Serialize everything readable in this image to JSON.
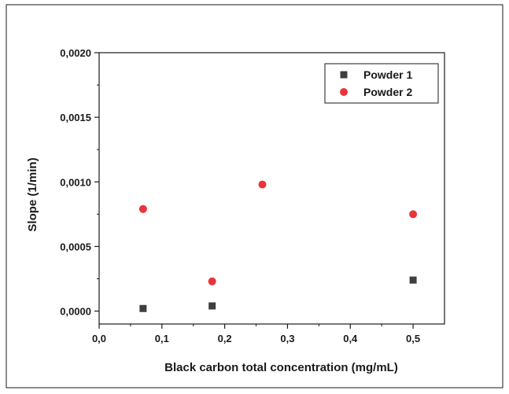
{
  "chart_data": {
    "type": "scatter",
    "title": "",
    "xlabel": "Black carbon total concentration (mg/mL)",
    "ylabel": "Slope (1/min)",
    "xlim": [
      0.0,
      0.55
    ],
    "ylim": [
      -0.0001,
      0.002
    ],
    "xticks": [
      0.0,
      0.1,
      0.2,
      0.3,
      0.4,
      0.5
    ],
    "xtick_labels": [
      "0,0",
      "0,1",
      "0,2",
      "0,3",
      "0,4",
      "0,5"
    ],
    "yticks": [
      0.0,
      0.0005,
      0.001,
      0.0015,
      0.002
    ],
    "ytick_labels": [
      "0,0000",
      "0,0005",
      "0,0010",
      "0,0015",
      "0,0020"
    ],
    "grid": false,
    "legend_position": "top-right",
    "series": [
      {
        "name": "Powder 1",
        "marker": "square",
        "color": "#3f3f3f",
        "points": [
          {
            "x": 0.07,
            "y": 2e-05
          },
          {
            "x": 0.18,
            "y": 4e-05
          },
          {
            "x": 0.5,
            "y": 0.00024
          }
        ]
      },
      {
        "name": "Powder 2",
        "marker": "circle",
        "color": "#e8343a",
        "points": [
          {
            "x": 0.07,
            "y": 0.00079
          },
          {
            "x": 0.18,
            "y": 0.00023
          },
          {
            "x": 0.26,
            "y": 0.00098
          },
          {
            "x": 0.5,
            "y": 0.00075
          }
        ]
      }
    ]
  }
}
